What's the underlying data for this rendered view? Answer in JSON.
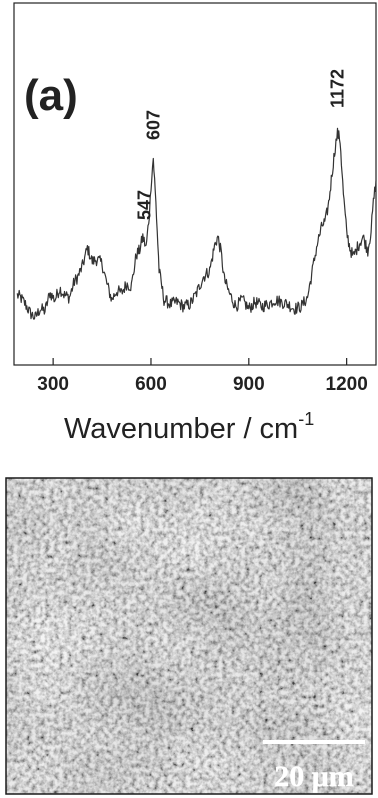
{
  "chart_data": {
    "type": "line",
    "panel_label": "(a)",
    "xlabel": "Wavenumber / cm",
    "xlabel_superscript": "-1",
    "ylabel": "",
    "xlim": [
      180,
      1290
    ],
    "ylim": [
      0,
      1
    ],
    "x_ticks": [
      300,
      600,
      900,
      1200
    ],
    "x_tick_labels": [
      "300",
      "600",
      "900",
      "1200"
    ],
    "y_ticks": [],
    "grid": false,
    "line_color": "#333333",
    "peak_annotations": [
      {
        "label": "547",
        "x": 580
      },
      {
        "label": "607",
        "x": 607
      },
      {
        "label": "1172",
        "x": 1172
      }
    ],
    "series": [
      {
        "x": [
          190,
          200,
          215,
          230,
          245,
          260,
          275,
          290,
          305,
          320,
          335,
          350,
          365,
          375,
          390,
          405,
          420,
          435,
          450,
          465,
          480,
          495,
          510,
          525,
          540,
          555,
          565,
          575,
          585,
          595,
          600,
          607,
          615,
          625,
          640,
          660,
          680,
          700,
          720,
          740,
          760,
          780,
          795,
          805,
          815,
          825,
          840,
          860,
          880,
          900,
          920,
          940,
          960,
          980,
          1000,
          1020,
          1040,
          1060,
          1080,
          1095,
          1110,
          1125,
          1135,
          1145,
          1155,
          1165,
          1172,
          1180,
          1190,
          1200,
          1210,
          1220,
          1235,
          1250,
          1265,
          1275,
          1282,
          1290
        ],
        "y": [
          0.19,
          0.18,
          0.15,
          0.11,
          0.09,
          0.13,
          0.12,
          0.2,
          0.17,
          0.22,
          0.19,
          0.18,
          0.25,
          0.27,
          0.32,
          0.4,
          0.34,
          0.35,
          0.33,
          0.24,
          0.17,
          0.21,
          0.2,
          0.24,
          0.23,
          0.37,
          0.39,
          0.45,
          0.4,
          0.55,
          0.68,
          0.8,
          0.6,
          0.3,
          0.17,
          0.15,
          0.16,
          0.14,
          0.15,
          0.2,
          0.27,
          0.3,
          0.41,
          0.45,
          0.38,
          0.26,
          0.2,
          0.14,
          0.17,
          0.13,
          0.16,
          0.14,
          0.15,
          0.17,
          0.16,
          0.15,
          0.13,
          0.14,
          0.18,
          0.3,
          0.42,
          0.5,
          0.52,
          0.6,
          0.73,
          0.85,
          0.91,
          0.88,
          0.64,
          0.47,
          0.4,
          0.36,
          0.41,
          0.45,
          0.39,
          0.48,
          0.6,
          0.7
        ]
      }
    ]
  },
  "micrograph": {
    "scale_bar_label": "20 μm"
  }
}
